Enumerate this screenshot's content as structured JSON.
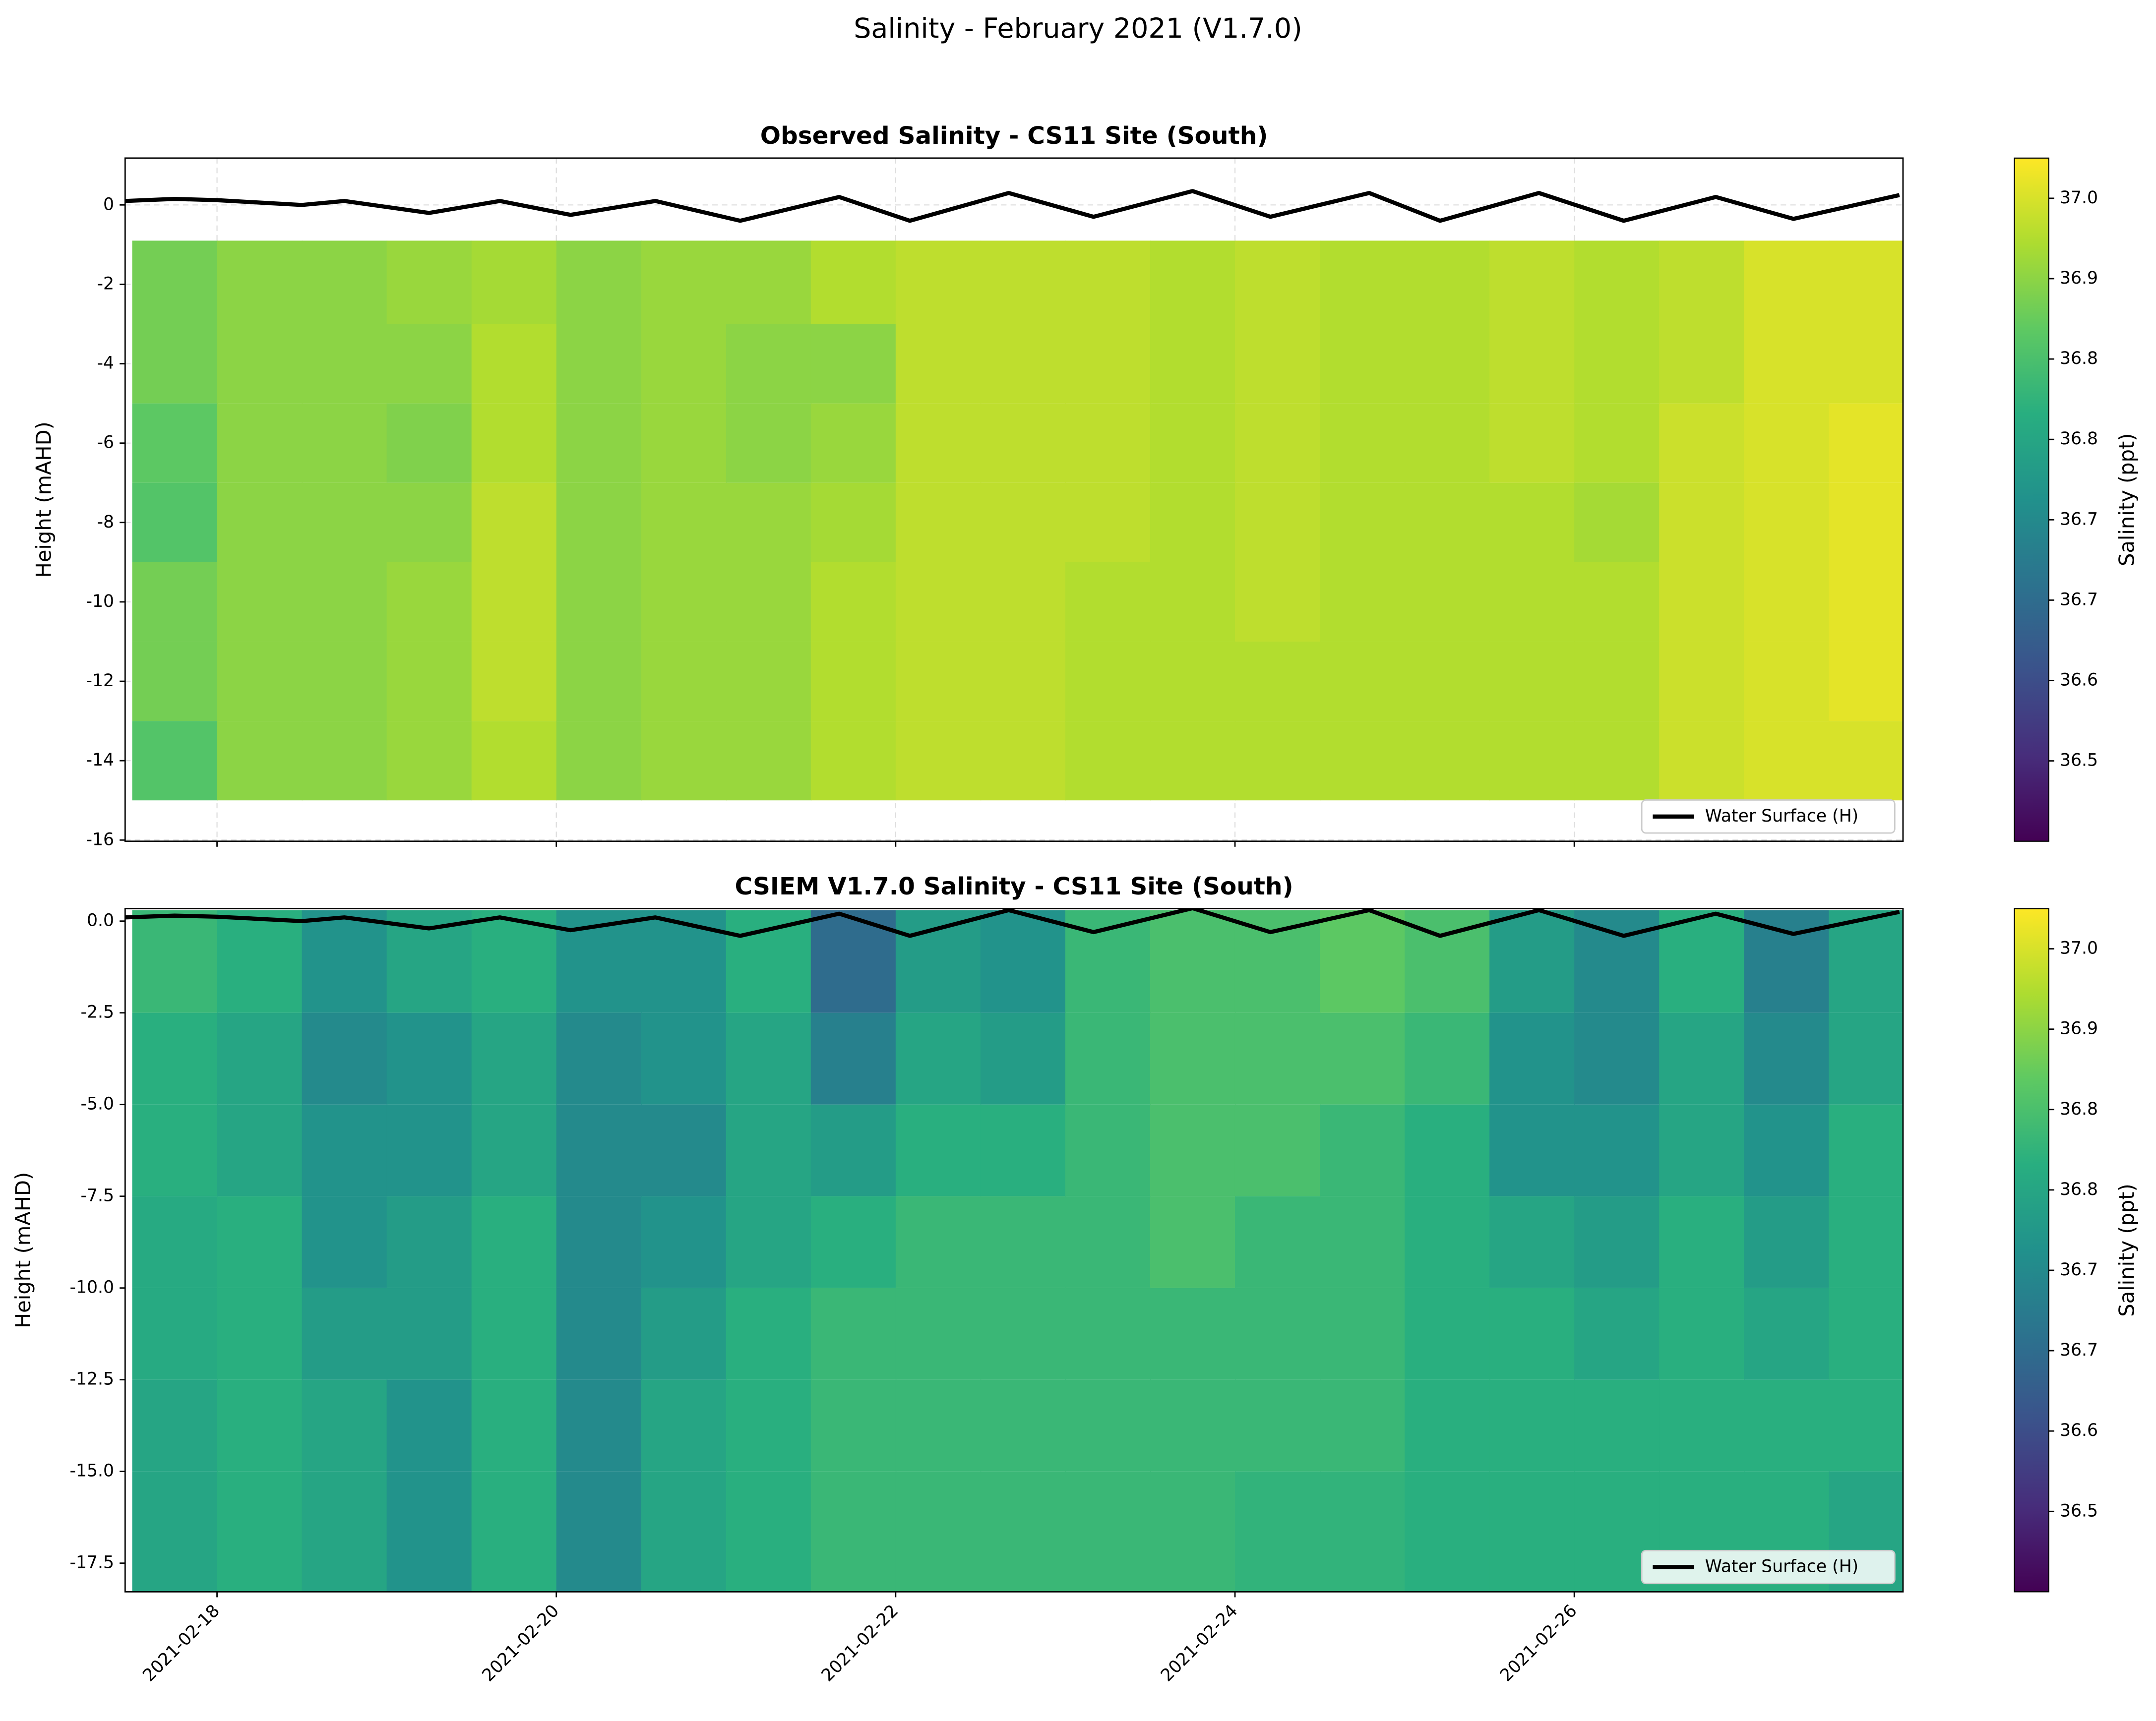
{
  "title": "Salinity - February 2021 (V1.7.0)",
  "chart_data": [
    {
      "type": "heatmap",
      "title": "Observed Salinity - CS11 Site (South)",
      "ylabel": "Height (mAHD)",
      "colormap": "viridis",
      "grid": true,
      "xlim": [
        "2021-02-17 11:00",
        "2021-02-27 22:30"
      ],
      "ylim": [
        -16.03,
        1.18
      ],
      "yticks": [
        0,
        -2,
        -4,
        -6,
        -8,
        -10,
        -12,
        -14,
        -16
      ],
      "x_edges": [
        "2021-02-17 12:00",
        "2021-02-18 00:00",
        "2021-02-18 12:00",
        "2021-02-19 00:00",
        "2021-02-19 12:00",
        "2021-02-20 00:00",
        "2021-02-20 12:00",
        "2021-02-21 00:00",
        "2021-02-21 12:00",
        "2021-02-22 00:00",
        "2021-02-22 12:00",
        "2021-02-23 00:00",
        "2021-02-23 12:00",
        "2021-02-24 00:00",
        "2021-02-24 12:00",
        "2021-02-25 00:00",
        "2021-02-25 12:00",
        "2021-02-26 00:00",
        "2021-02-26 12:00",
        "2021-02-27 00:00",
        "2021-02-27 12:00",
        "2021-02-28 00:00"
      ],
      "y_edges": [
        -0.9,
        -3,
        -5,
        -7,
        -9,
        -11,
        -13,
        -15
      ],
      "values": [
        [
          36.88,
          36.9,
          36.9,
          36.91,
          36.92,
          36.9,
          36.91,
          36.91,
          36.93,
          36.94,
          36.94,
          36.94,
          36.93,
          36.94,
          36.93,
          36.93,
          36.94,
          36.93,
          36.94,
          36.96,
          36.96
        ],
        [
          36.88,
          36.9,
          36.9,
          36.9,
          36.93,
          36.9,
          36.91,
          36.9,
          36.9,
          36.94,
          36.94,
          36.94,
          36.93,
          36.94,
          36.93,
          36.93,
          36.94,
          36.93,
          36.94,
          36.96,
          36.96
        ],
        [
          36.86,
          36.9,
          36.9,
          36.89,
          36.93,
          36.9,
          36.91,
          36.9,
          36.91,
          36.94,
          36.94,
          36.94,
          36.93,
          36.94,
          36.93,
          36.93,
          36.94,
          36.93,
          36.95,
          36.96,
          36.97
        ],
        [
          36.85,
          36.9,
          36.9,
          36.9,
          36.94,
          36.9,
          36.91,
          36.91,
          36.92,
          36.94,
          36.94,
          36.94,
          36.93,
          36.94,
          36.93,
          36.93,
          36.93,
          36.92,
          36.95,
          36.96,
          36.97
        ],
        [
          36.88,
          36.9,
          36.9,
          36.91,
          36.94,
          36.9,
          36.91,
          36.91,
          36.93,
          36.94,
          36.94,
          36.93,
          36.93,
          36.94,
          36.93,
          36.93,
          36.93,
          36.93,
          36.95,
          36.96,
          36.97
        ],
        [
          36.88,
          36.9,
          36.9,
          36.91,
          36.94,
          36.9,
          36.91,
          36.91,
          36.93,
          36.94,
          36.94,
          36.93,
          36.93,
          36.93,
          36.93,
          36.93,
          36.93,
          36.93,
          36.95,
          36.96,
          36.97
        ],
        [
          36.85,
          36.9,
          36.9,
          36.91,
          36.93,
          36.9,
          36.91,
          36.91,
          36.93,
          36.94,
          36.94,
          36.93,
          36.93,
          36.93,
          36.93,
          36.93,
          36.93,
          36.93,
          36.95,
          36.96,
          36.96
        ]
      ],
      "clim": [
        36.48,
        36.99
      ],
      "colorbar_label": "Salinity (ppt)",
      "cticks": [
        {
          "value": 36.54,
          "label": "36.5"
        },
        {
          "value": 36.6,
          "label": "36.6"
        },
        {
          "value": 36.66,
          "label": "36.7"
        },
        {
          "value": 36.72,
          "label": "36.7"
        },
        {
          "value": 36.78,
          "label": "36.8"
        },
        {
          "value": 36.84,
          "label": "36.8"
        },
        {
          "value": 36.9,
          "label": "36.9"
        },
        {
          "value": 36.96,
          "label": "37.0"
        }
      ],
      "legend": "lower right",
      "series": [
        {
          "name": "Water Surface (H)",
          "color": "#000000",
          "x": [
            "2021-02-17 11:00",
            "2021-02-17 18:00",
            "2021-02-18 00:00",
            "2021-02-18 12:00",
            "2021-02-18 18:00",
            "2021-02-19 06:00",
            "2021-02-19 16:00",
            "2021-02-20 02:00",
            "2021-02-20 14:00",
            "2021-02-21 02:00",
            "2021-02-21 16:00",
            "2021-02-22 02:00",
            "2021-02-22 16:00",
            "2021-02-23 04:00",
            "2021-02-23 18:00",
            "2021-02-24 05:00",
            "2021-02-24 19:00",
            "2021-02-25 05:00",
            "2021-02-25 19:00",
            "2021-02-26 07:00",
            "2021-02-26 20:00",
            "2021-02-27 07:00",
            "2021-02-27 22:00"
          ],
          "values": [
            0.1,
            0.15,
            0.12,
            0,
            0.1,
            -0.2,
            0.1,
            -0.25,
            0.1,
            -0.4,
            0.2,
            -0.4,
            0.3,
            -0.3,
            0.35,
            -0.3,
            0.3,
            -0.4,
            0.3,
            -0.4,
            0.2,
            -0.35,
            0.25
          ]
        }
      ]
    },
    {
      "type": "heatmap",
      "title": "CSIEM V1.7.0 Salinity - CS11 Site (South)",
      "ylabel": "Height (mAHD)",
      "colormap": "viridis",
      "grid": false,
      "xlim": [
        "2021-02-17 11:00",
        "2021-02-27 22:30"
      ],
      "ylim": [
        -18.28,
        0.34
      ],
      "yticks": [
        {
          "value": 0,
          "label": "0.0"
        },
        -2.5,
        {
          "value": -5,
          "label": "-5.0"
        },
        -7.5,
        {
          "value": -10,
          "label": "-10.0"
        },
        -12.5,
        {
          "value": -15,
          "label": "-15.0"
        },
        -17.5
      ],
      "xticks": [
        "2021-02-18",
        "2021-02-20",
        "2021-02-22",
        "2021-02-24",
        "2021-02-26"
      ],
      "x_edges": [
        "2021-02-17 12:00",
        "2021-02-18 00:00",
        "2021-02-18 12:00",
        "2021-02-19 00:00",
        "2021-02-19 12:00",
        "2021-02-20 00:00",
        "2021-02-20 12:00",
        "2021-02-21 00:00",
        "2021-02-21 12:00",
        "2021-02-22 00:00",
        "2021-02-22 12:00",
        "2021-02-23 00:00",
        "2021-02-23 12:00",
        "2021-02-24 00:00",
        "2021-02-24 12:00",
        "2021-02-25 00:00",
        "2021-02-25 12:00",
        "2021-02-26 00:00",
        "2021-02-26 12:00",
        "2021-02-27 00:00",
        "2021-02-27 12:00",
        "2021-02-28 00:00"
      ],
      "y_edges": [
        0.3,
        -2.5,
        -5,
        -7.5,
        -10,
        -12.5,
        -15,
        -18.3
      ],
      "values": [
        [
          36.82,
          36.8,
          36.74,
          36.78,
          36.8,
          36.74,
          36.74,
          36.8,
          36.66,
          36.76,
          36.74,
          36.82,
          36.84,
          36.84,
          36.86,
          36.84,
          36.76,
          36.72,
          36.8,
          36.7,
          36.78
        ],
        [
          36.8,
          36.78,
          36.72,
          36.74,
          36.78,
          36.72,
          36.74,
          36.78,
          36.7,
          36.78,
          36.76,
          36.82,
          36.84,
          36.84,
          36.84,
          36.82,
          36.74,
          36.72,
          36.78,
          36.72,
          36.78
        ],
        [
          36.8,
          36.78,
          36.74,
          36.74,
          36.78,
          36.72,
          36.72,
          36.78,
          36.76,
          36.8,
          36.8,
          36.82,
          36.84,
          36.84,
          36.82,
          36.8,
          36.74,
          36.74,
          36.78,
          36.74,
          36.8
        ],
        [
          36.79,
          36.8,
          36.74,
          36.76,
          36.8,
          36.72,
          36.74,
          36.78,
          36.8,
          36.82,
          36.82,
          36.82,
          36.84,
          36.82,
          36.82,
          36.8,
          36.78,
          36.76,
          36.8,
          36.76,
          36.8
        ],
        [
          36.79,
          36.8,
          36.76,
          36.76,
          36.8,
          36.72,
          36.76,
          36.8,
          36.82,
          36.82,
          36.82,
          36.82,
          36.82,
          36.82,
          36.82,
          36.8,
          36.8,
          36.78,
          36.8,
          36.78,
          36.8
        ],
        [
          36.78,
          36.8,
          36.78,
          36.74,
          36.8,
          36.72,
          36.78,
          36.8,
          36.82,
          36.82,
          36.82,
          36.82,
          36.82,
          36.82,
          36.82,
          36.8,
          36.8,
          36.8,
          36.8,
          36.8,
          36.8
        ],
        [
          36.78,
          36.8,
          36.78,
          36.74,
          36.8,
          36.72,
          36.78,
          36.8,
          36.82,
          36.82,
          36.82,
          36.82,
          36.82,
          36.81,
          36.81,
          36.8,
          36.8,
          36.8,
          36.8,
          36.8,
          36.78
        ]
      ],
      "clim": [
        36.48,
        36.99
      ],
      "colorbar_label": "Salinity (ppt)",
      "cticks": [
        {
          "value": 36.54,
          "label": "36.5"
        },
        {
          "value": 36.6,
          "label": "36.6"
        },
        {
          "value": 36.66,
          "label": "36.7"
        },
        {
          "value": 36.72,
          "label": "36.7"
        },
        {
          "value": 36.78,
          "label": "36.8"
        },
        {
          "value": 36.84,
          "label": "36.8"
        },
        {
          "value": 36.9,
          "label": "36.9"
        },
        {
          "value": 36.96,
          "label": "37.0"
        }
      ],
      "legend": "lower right",
      "series": [
        {
          "name": "Water Surface (H)",
          "color": "#000000",
          "x": [
            "2021-02-17 11:00",
            "2021-02-17 18:00",
            "2021-02-18 00:00",
            "2021-02-18 12:00",
            "2021-02-18 18:00",
            "2021-02-19 06:00",
            "2021-02-19 16:00",
            "2021-02-20 02:00",
            "2021-02-20 14:00",
            "2021-02-21 02:00",
            "2021-02-21 16:00",
            "2021-02-22 02:00",
            "2021-02-22 16:00",
            "2021-02-23 04:00",
            "2021-02-23 18:00",
            "2021-02-24 05:00",
            "2021-02-24 19:00",
            "2021-02-25 05:00",
            "2021-02-25 19:00",
            "2021-02-26 07:00",
            "2021-02-26 20:00",
            "2021-02-27 07:00",
            "2021-02-27 22:00"
          ],
          "values": [
            0.1,
            0.15,
            0.12,
            0,
            0.1,
            -0.2,
            0.1,
            -0.25,
            0.1,
            -0.4,
            0.2,
            -0.4,
            0.3,
            -0.3,
            0.35,
            -0.3,
            0.3,
            -0.4,
            0.3,
            -0.4,
            0.2,
            -0.35,
            0.25
          ]
        }
      ]
    }
  ]
}
